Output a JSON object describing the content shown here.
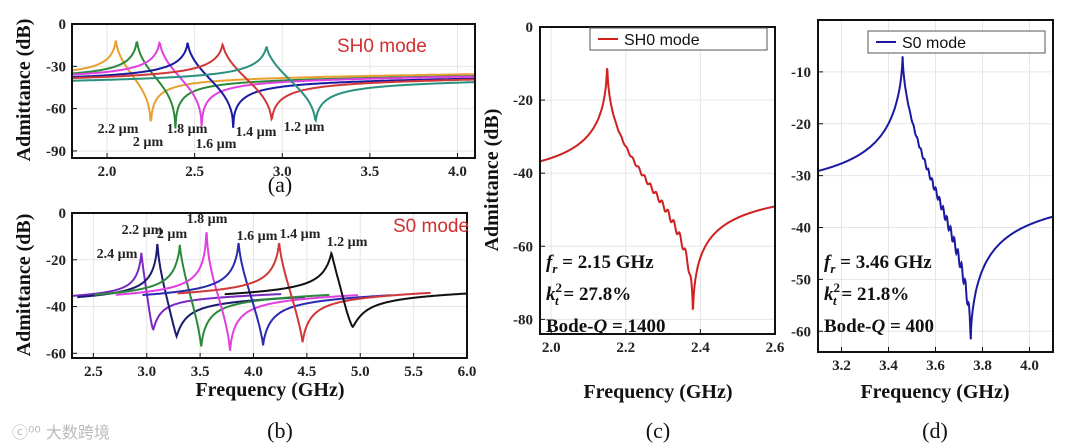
{
  "chart_data": [
    {
      "panel": "(a)",
      "type": "line",
      "title": "",
      "mode_label": "SH0 mode",
      "xlabel": "",
      "ylabel": "Admittance (dB)",
      "xlim": [
        1.8,
        4.1
      ],
      "ylim": [
        -95,
        0
      ],
      "xticks": [
        "2.0",
        "2.5",
        "3.0",
        "3.5",
        "4.0"
      ],
      "xtick_values": [
        2.0,
        2.5,
        3.0,
        3.5,
        4.0
      ],
      "yticks": [
        "0",
        "-30",
        "-60",
        "-90"
      ],
      "ytick_values": [
        0,
        -30,
        -60,
        -90
      ],
      "series": [
        {
          "name": "2.2 µm",
          "color": "#e8a030",
          "fr": 2.05,
          "fa": 2.25,
          "peak": -10,
          "valley": -78,
          "base": -38
        },
        {
          "name": "2 µm",
          "color": "#2a8a3a",
          "fr": 2.17,
          "fa": 2.39,
          "peak": -10,
          "valley": -79,
          "base": -39
        },
        {
          "name": "1.8 µm",
          "color": "#e040e0",
          "fr": 2.3,
          "fa": 2.54,
          "peak": -11,
          "valley": -75,
          "base": -39
        },
        {
          "name": "1.6 µm",
          "color": "#1a1aa0",
          "fr": 2.46,
          "fa": 2.72,
          "peak": -12,
          "valley": -74,
          "base": -40
        },
        {
          "name": "1.4 µm",
          "color": "#d03838",
          "fr": 2.66,
          "fa": 2.94,
          "peak": -13,
          "valley": -71,
          "base": -40
        },
        {
          "name": "1.2 µm",
          "color": "#2a9080",
          "fr": 2.91,
          "fa": 3.19,
          "peak": -15,
          "valley": -72,
          "base": -41
        }
      ]
    },
    {
      "panel": "(b)",
      "type": "line",
      "mode_label": "S0 mode",
      "xlabel": "Frequency (GHz)",
      "ylabel": "Admittance (dB)",
      "xlim": [
        2.3,
        6.0
      ],
      "ylim": [
        -62,
        0
      ],
      "xticks": [
        "2.5",
        "3.0",
        "3.5",
        "4.0",
        "4.5",
        "5.0",
        "5.5",
        "6.0"
      ],
      "xtick_values": [
        2.5,
        3.0,
        3.5,
        4.0,
        4.5,
        5.0,
        5.5,
        6.0
      ],
      "yticks": [
        "0",
        "-20",
        "-40",
        "-60"
      ],
      "ytick_values": [
        0,
        -20,
        -40,
        -60
      ],
      "series": [
        {
          "name": "2.4 µm",
          "color": "#7a2ac0",
          "fr": 2.95,
          "fa": 3.06,
          "peak": -17,
          "valley": -50,
          "base": -36
        },
        {
          "name": "2.2 µm",
          "color": "#1a1a70",
          "fr": 3.1,
          "fa": 3.28,
          "peak": -12,
          "valley": -53,
          "base": -37
        },
        {
          "name": "2 µm",
          "color": "#2a8a3a",
          "fr": 3.31,
          "fa": 3.51,
          "peak": -13,
          "valley": -58,
          "base": -36
        },
        {
          "name": "1.8 µm",
          "color": "#e040e0",
          "fr": 3.56,
          "fa": 3.78,
          "peak": -5,
          "valley": -60,
          "base": -36
        },
        {
          "name": "1.6 µm",
          "color": "#2a2ab0",
          "fr": 3.86,
          "fa": 4.09,
          "peak": -12,
          "valley": -57,
          "base": -36
        },
        {
          "name": "1.4 µm",
          "color": "#d03838",
          "fr": 4.24,
          "fa": 4.46,
          "peak": -12,
          "valley": -56,
          "base": -35
        },
        {
          "name": "1.2 µm",
          "color": "#111111",
          "fr": 4.73,
          "fa": 4.93,
          "peak": -17,
          "valley": -49,
          "base": -35
        }
      ]
    },
    {
      "panel": "(c)",
      "type": "line",
      "xlabel": "Frequency (GHz)",
      "ylabel": "Admittance (dB)",
      "xlim": [
        1.97,
        2.6
      ],
      "ylim": [
        -84,
        0
      ],
      "xticks": [
        "2.0",
        "2.2",
        "2.4",
        "2.6"
      ],
      "xtick_values": [
        2.0,
        2.2,
        2.4,
        2.6
      ],
      "yticks": [
        "0",
        "-20",
        "-40",
        "-60",
        "-80"
      ],
      "ytick_values": [
        0,
        -20,
        -40,
        -60,
        -80
      ],
      "legend": "top-right",
      "series": [
        {
          "name": "SH0 mode",
          "color": "#d02020",
          "fr": 2.15,
          "fa": 2.38,
          "peak": -8,
          "valley": -82,
          "base": -44
        }
      ],
      "annotations": {
        "fr_label": "f",
        "fr_sub": "r",
        "fr_value": " = 2.15 GHz",
        "k_label": "k",
        "k_sub": "t",
        "k_sup": "2",
        "k_value": " = 27.8%",
        "q_label": "Bode-",
        "q_italic": "Q",
        "q_value": " = 1400"
      }
    },
    {
      "panel": "(d)",
      "type": "line",
      "xlabel": "Frequency (GHz)",
      "ylabel": "",
      "xlim": [
        3.1,
        4.1
      ],
      "ylim": [
        -64,
        0
      ],
      "xticks": [
        "3.2",
        "3.4",
        "3.6",
        "3.8",
        "4.0"
      ],
      "xtick_values": [
        3.2,
        3.4,
        3.6,
        3.8,
        4.0
      ],
      "yticks": [
        "-10",
        "-20",
        "-30",
        "-40",
        "-50",
        "-60"
      ],
      "ytick_values": [
        -10,
        -20,
        -30,
        -40,
        -50,
        -60
      ],
      "legend": "top-right",
      "series": [
        {
          "name": "S0 mode",
          "color": "#1a1aa0",
          "fr": 3.46,
          "fa": 3.75,
          "peak": -7,
          "valley": -62,
          "base": -34
        }
      ],
      "annotations": {
        "fr_label": "f",
        "fr_sub": "r",
        "fr_value": " = 3.46 GHz",
        "k_label": "k",
        "k_sub": "t",
        "k_sup": "2",
        "k_value": " = 21.8%",
        "q_label": "Bode-",
        "q_italic": "Q",
        "q_value": " = 400"
      }
    }
  ],
  "watermark": "大数跨境"
}
